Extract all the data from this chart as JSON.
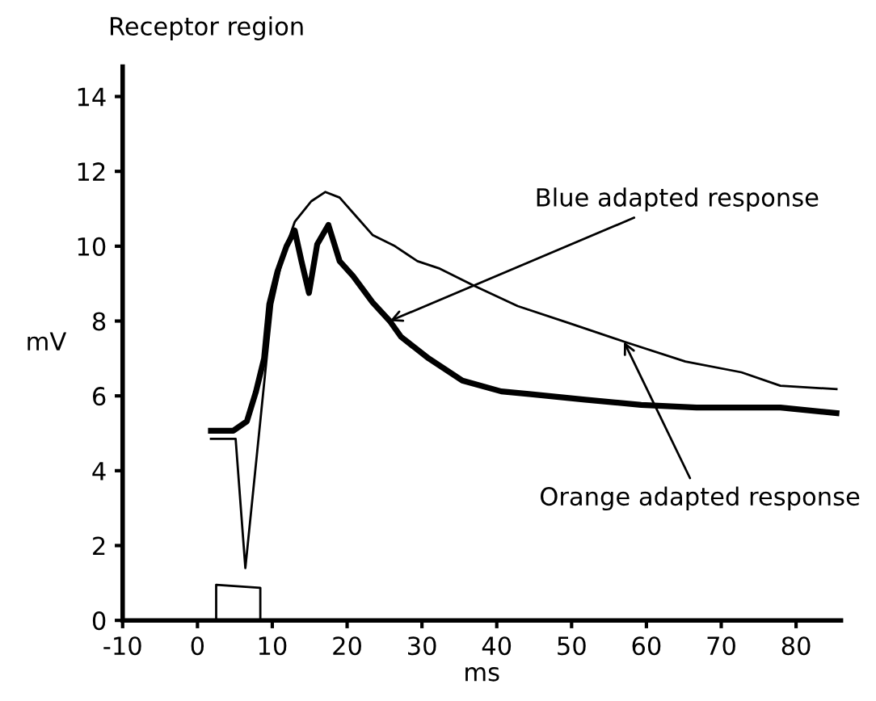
{
  "chart_data": {
    "type": "line",
    "title": "Receptor region",
    "xlabel": "ms",
    "ylabel": "mV",
    "xlim": [
      -10,
      86
    ],
    "ylim": [
      0,
      14.8
    ],
    "xticks": [
      -10,
      0,
      10,
      20,
      30,
      40,
      50,
      60,
      70,
      80
    ],
    "yticks": [
      0,
      2,
      4,
      6,
      8,
      10,
      12,
      14
    ],
    "grid": false,
    "legend": false,
    "marker": "none",
    "line_style": "solid",
    "series": [
      {
        "color": "#000000",
        "x": [
          1.8,
          5.1,
          6.4,
          9.3,
          10.0,
          11.5,
          13,
          15.2,
          17.1,
          19,
          21.2,
          23.4,
          26.4,
          29.4,
          32.4,
          36.9,
          42.8,
          49.6,
          57,
          65.2,
          72.7,
          77.9,
          85.4
        ],
        "values": [
          4.85,
          4.85,
          1.4,
          7.1,
          8.45,
          9.8,
          10.65,
          11.2,
          11.45,
          11.3,
          10.8,
          10.3,
          10.0,
          9.6,
          9.4,
          8.95,
          8.4,
          7.95,
          7.45,
          6.92,
          6.63,
          6.27,
          6.18
        ]
      },
      {
        "color": "#000000",
        "x": [
          1.8,
          4.8,
          6.6,
          7.8,
          8.9,
          9.6,
          10.7,
          11.9,
          13,
          13.9,
          14.9,
          16,
          17.5,
          19,
          20.8,
          23.4,
          25.7,
          27.2,
          30.9,
          35.4,
          40.6,
          44.3,
          51.8,
          59.3,
          66.7,
          77.9,
          85.4
        ],
        "values": [
          5.07,
          5.07,
          5.32,
          6.1,
          7.0,
          8.45,
          9.33,
          10.0,
          10.42,
          9.6,
          8.75,
          10.05,
          10.57,
          9.6,
          9.2,
          8.5,
          8.0,
          7.58,
          7.0,
          6.41,
          6.12,
          6.05,
          5.9,
          5.76,
          5.69,
          5.69,
          5.54
        ]
      },
      {
        "color": "#000000",
        "x": [
          2.5,
          2.5,
          8.4,
          8.4
        ],
        "values": [
          0,
          0.95,
          0.87,
          0
        ]
      }
    ],
    "annotations": [
      {
        "text": "Blue adapted response",
        "x": 25.7,
        "y": 8.0
      },
      {
        "text": "Orange adapted response",
        "x": 57,
        "y": 7.45
      }
    ]
  }
}
